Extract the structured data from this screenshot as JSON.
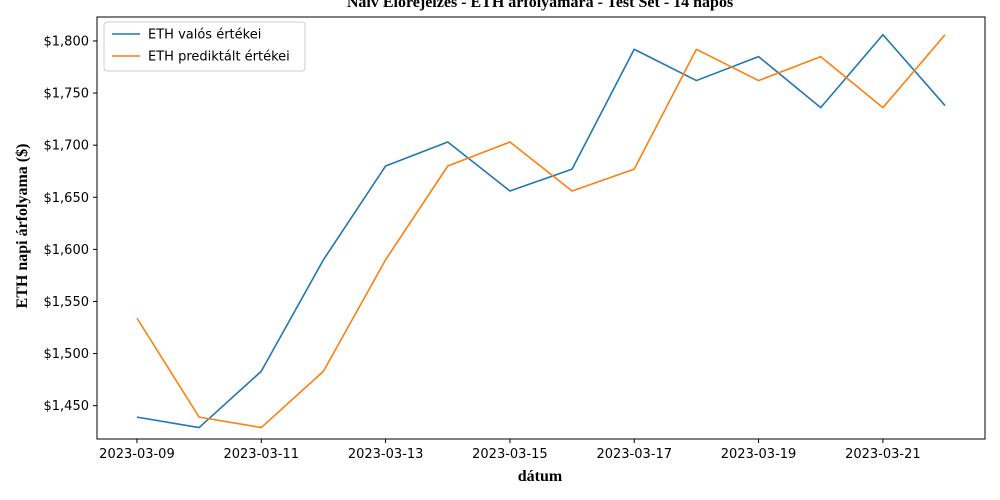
{
  "chart_data": {
    "type": "line",
    "title": "Naív Előrejelzés - ETH árfolyamára - Test Set - 14 napos",
    "xlabel": "dátum",
    "ylabel": "ETH napi árfolyama ($)",
    "x": [
      "2023-03-09",
      "2023-03-10",
      "2023-03-11",
      "2023-03-12",
      "2023-03-13",
      "2023-03-14",
      "2023-03-15",
      "2023-03-16",
      "2023-03-17",
      "2023-03-18",
      "2023-03-19",
      "2023-03-20",
      "2023-03-21",
      "2023-03-22"
    ],
    "x_ticks": [
      "2023-03-09",
      "2023-03-11",
      "2023-03-13",
      "2023-03-15",
      "2023-03-17",
      "2023-03-19",
      "2023-03-21"
    ],
    "y_ticks": [
      "$1,450",
      "$1,500",
      "$1,550",
      "$1,600",
      "$1,650",
      "$1,700",
      "$1,750",
      "$1,800"
    ],
    "y_tick_values": [
      1450,
      1500,
      1550,
      1600,
      1650,
      1700,
      1750,
      1800
    ],
    "ylim": [
      1418,
      1823
    ],
    "grid": false,
    "legend_position": "top-left",
    "series": [
      {
        "name": "ETH valós értékei",
        "color": "#1f77b4",
        "values": [
          1439,
          1429,
          1483,
          1590,
          1680,
          1703,
          1656,
          1677,
          1792,
          1762,
          1785,
          1736,
          1806,
          1738
        ]
      },
      {
        "name": "ETH prediktált értékei",
        "color": "#ff7f0e",
        "values": [
          1534,
          1439,
          1429,
          1483,
          1590,
          1680,
          1703,
          1656,
          1677,
          1792,
          1762,
          1785,
          1736,
          1806
        ]
      }
    ]
  }
}
